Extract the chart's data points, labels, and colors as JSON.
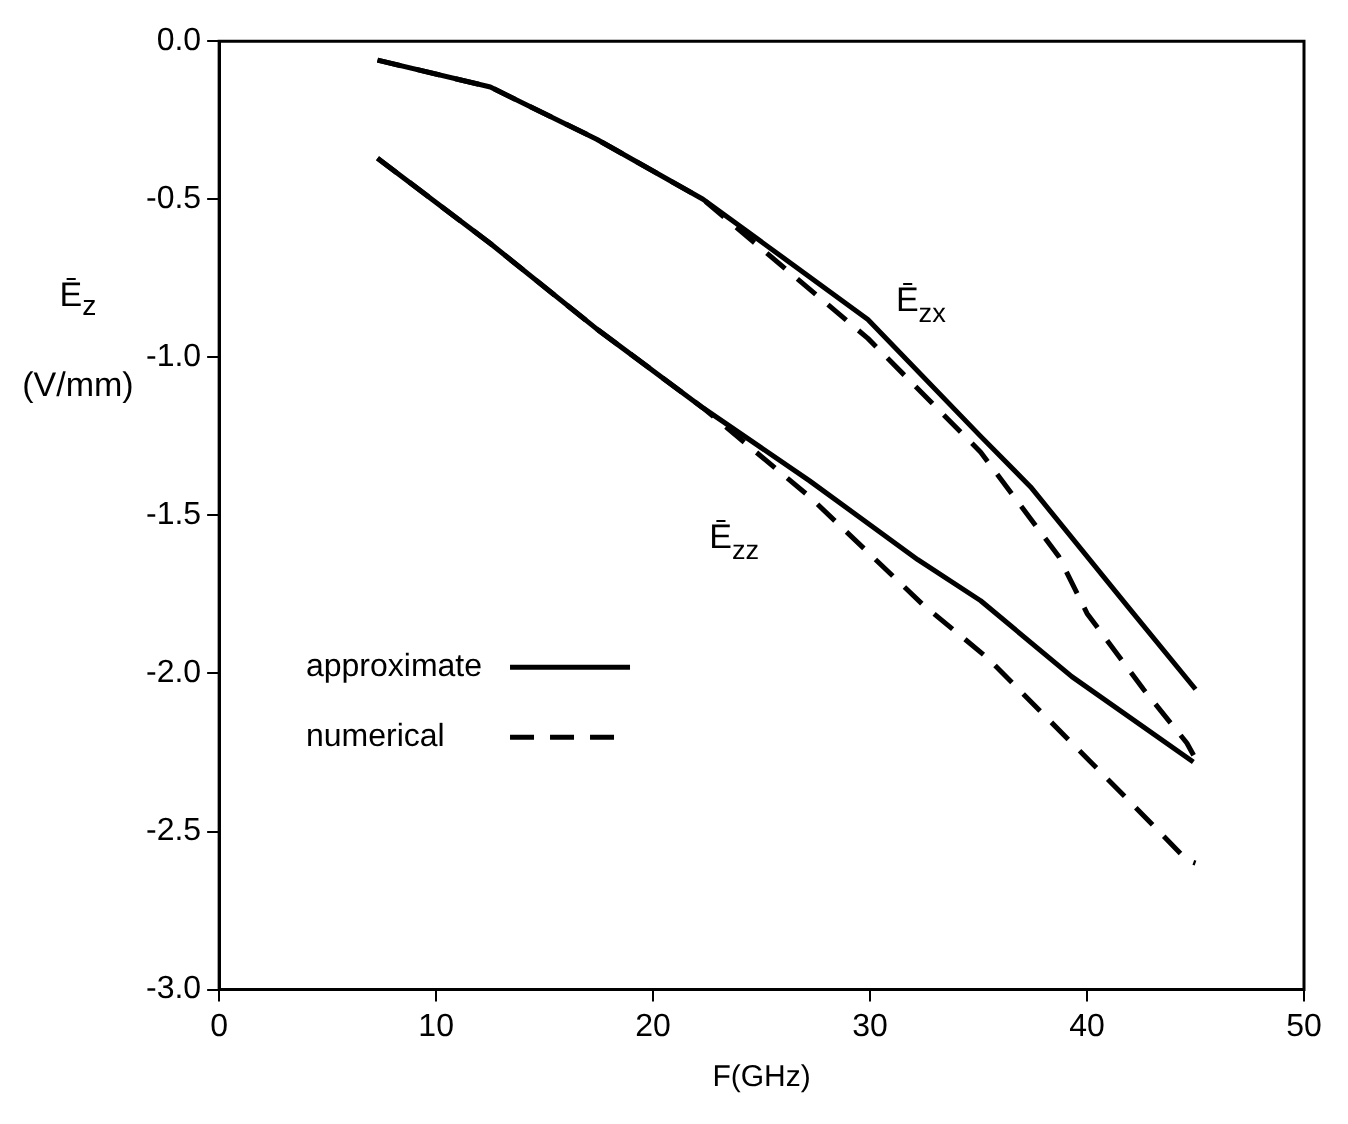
{
  "chart_data": {
    "type": "line",
    "xlabel": "F(GHz)",
    "ylabel": "Ē$_{z}$ (V/mm)",
    "xlim": [
      0,
      50
    ],
    "xticks": [
      0,
      10,
      20,
      30,
      40,
      50
    ],
    "ylim": [
      -3,
      0
    ],
    "yticks": [
      {
        "value": -3,
        "label": "-3.0"
      },
      {
        "value": -2.5,
        "label": "-2.5"
      },
      {
        "value": -2,
        "label": "-2.0"
      },
      {
        "value": -1.5,
        "label": "-1.5"
      },
      {
        "value": -1,
        "label": "-1.0"
      },
      {
        "value": -0.5,
        "label": "-0.5"
      },
      {
        "value": 0,
        "label": "0.0"
      }
    ],
    "grid": false,
    "legend": "bottom left",
    "marker": "none",
    "series": [
      {
        "name": "approximate",
        "color": "#000000",
        "line_style": "solid",
        "x": [
          7.3,
          12.5,
          17.4,
          22.3,
          29.9,
          35.1,
          37.4,
          41.9,
          45
        ],
        "values": [
          -0.06,
          -0.145,
          -0.31,
          -0.5,
          -0.88,
          -1.25,
          -1.41,
          -1.79,
          -2.05
        ]
      },
      {
        "name": "numerical",
        "color": "#000000",
        "line_style": "dashed",
        "x": [
          7.3,
          12.5,
          17.4,
          22.3,
          29.9,
          35.1,
          38.7,
          40,
          42.6,
          44.6,
          45
        ],
        "values": [
          -0.06,
          -0.145,
          -0.31,
          -0.5,
          -0.94,
          -1.3,
          -1.63,
          -1.81,
          -2.05,
          -2.22,
          -2.27
        ]
      },
      {
        "color": "#000000",
        "line_style": "solid",
        "x": [
          7.3,
          12.5,
          17.4,
          22.3,
          27.2,
          32.2,
          35.1,
          39.3,
          44.9
        ],
        "values": [
          -0.37,
          -0.64,
          -0.91,
          -1.16,
          -1.39,
          -1.64,
          -1.77,
          -2.01,
          -2.28
        ]
      },
      {
        "color": "#000000",
        "line_style": "dashed",
        "x": [
          7.3,
          12.5,
          17.4,
          22.3,
          27.2,
          32.4,
          35.4,
          39.3,
          41.9,
          44.6,
          45
        ],
        "values": [
          -0.37,
          -0.64,
          -0.91,
          -1.16,
          -1.44,
          -1.78,
          -1.95,
          -2.22,
          -2.4,
          -2.59,
          -2.6
        ]
      }
    ],
    "annotations": [
      {
        "text": "Ē$_{zx}$",
        "x": 29.9,
        "y": -0.88
      },
      {
        "text": "Ē$_{zz}$",
        "x": 27.2,
        "y": -1.44
      }
    ]
  }
}
